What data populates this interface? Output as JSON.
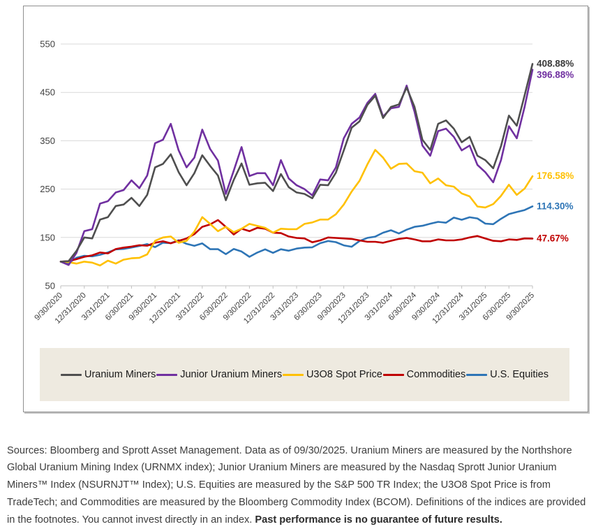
{
  "chart_data": {
    "type": "line",
    "title": "",
    "xlabel": "",
    "ylabel": "",
    "ylim": [
      50,
      550
    ],
    "y_ticks": [
      550,
      450,
      350,
      250,
      150,
      50
    ],
    "grid": "horizontal",
    "legend_position": "bottom",
    "x_tick_labels": [
      "9/30/2020",
      "12/31/2020",
      "3/31/2021",
      "6/30/2021",
      "9/30/2021",
      "12/31/2021",
      "3/31/2022",
      "6/30/2022",
      "9/30/2022",
      "12/31/2022",
      "3/31/2023",
      "6/30/2023",
      "9/30/2023",
      "12/31/2023",
      "3/31/2024",
      "6/30/2024",
      "9/30/2024",
      "12/31/2024",
      "3/31/2025",
      "6/30/2025",
      "9/30/2025"
    ],
    "points_per_tick": 3,
    "x_resolution": "monthly",
    "series": [
      {
        "name": "U.S. Equities",
        "color": "#2e75b6",
        "label_color": "#2e75b6",
        "end_label": "114.30%",
        "values": [
          100,
          97.3,
          108,
          112.1,
          111,
          114.1,
          119.1,
          125.4,
          126.3,
          129.2,
          132.3,
          136.3,
          130,
          139.1,
          138.1,
          144.3,
          136.8,
          132.7,
          137.7,
          125.7,
          125.9,
          115.5,
          126.2,
          121,
          109.9,
          118.8,
          125.4,
          118.2,
          125.6,
          122.5,
          127,
          129,
          129.6,
          138.1,
          142.6,
          140.3,
          133.6,
          130.8,
          142.7,
          149.2,
          151.7,
          159.8,
          164.9,
          158.2,
          166.1,
          172,
          174.1,
          178.4,
          182.2,
          180.5,
          191.1,
          186.6,
          191.8,
          189.3,
          178.6,
          177.4,
          188.6,
          198.2,
          202.6,
          206.7,
          214.3
        ]
      },
      {
        "name": "Commodities",
        "color": "#c00000",
        "label_color": "#c00000",
        "end_label": "47.67%",
        "values": [
          100,
          101,
          105,
          110,
          113,
          119,
          117,
          126,
          129,
          131,
          134,
          133,
          139,
          142,
          138,
          143,
          148,
          157,
          172,
          177,
          186,
          172,
          156,
          168,
          163,
          170,
          168,
          160,
          159,
          152,
          149,
          148,
          140,
          144,
          150,
          149,
          148,
          147,
          144,
          141,
          141,
          139,
          143,
          147,
          149,
          146,
          142,
          142,
          146,
          144,
          144,
          146,
          150,
          153,
          148,
          143,
          142,
          146,
          145,
          148,
          147.67
        ]
      },
      {
        "name": "U3O8 Spot Price",
        "color": "#ffc000",
        "label_color": "#ffc000",
        "end_label": "176.58%",
        "values": [
          100,
          99,
          96,
          100,
          98,
          92,
          102,
          96,
          104,
          107,
          108,
          115,
          143,
          150,
          152,
          139,
          143,
          162,
          192,
          178,
          163,
          172,
          161,
          168,
          178,
          174,
          170,
          160,
          168,
          167,
          167,
          178,
          181,
          187,
          187,
          198,
          218,
          245,
          267,
          301,
          331,
          315,
          292,
          302,
          303,
          287,
          284,
          262,
          272,
          258,
          255,
          241,
          235,
          214,
          212,
          219,
          236,
          259,
          238,
          251,
          276.58
        ]
      },
      {
        "name": "Junior Uranium Miners",
        "color": "#7030a0",
        "label_color": "#7030a0",
        "end_label": "396.88%",
        "values": [
          100,
          93,
          118,
          163,
          167,
          220,
          225,
          243,
          248,
          268,
          252,
          278,
          345,
          352,
          385,
          330,
          295,
          315,
          373,
          333,
          309,
          240,
          288,
          337,
          277,
          283,
          283,
          258,
          310,
          272,
          258,
          250,
          237,
          270,
          268,
          295,
          355,
          385,
          398,
          428,
          447,
          400,
          417,
          420,
          464,
          410,
          340,
          319,
          370,
          375,
          358,
          330,
          340,
          300,
          285,
          264,
          310,
          380,
          355,
          420,
          496.88
        ]
      },
      {
        "name": "Uranium Miners",
        "color": "#4f4f4f",
        "label_color": "#3a3a3a",
        "end_label": "408.88%",
        "values": [
          100,
          101,
          122,
          150,
          148,
          187,
          192,
          215,
          218,
          232,
          215,
          238,
          295,
          302,
          322,
          285,
          258,
          283,
          320,
          298,
          278,
          227,
          269,
          303,
          259,
          262,
          263,
          246,
          281,
          254,
          243,
          240,
          231,
          259,
          258,
          284,
          330,
          377,
          390,
          424,
          443,
          397,
          420,
          425,
          460,
          420,
          352,
          331,
          385,
          392,
          375,
          347,
          358,
          319,
          310,
          293,
          339,
          402,
          381,
          444,
          508.88
        ]
      }
    ]
  },
  "legend": {
    "items": [
      {
        "label": "Uranium Miners",
        "color": "#4f4f4f"
      },
      {
        "label": "Junior Uranium Miners",
        "color": "#7030a0"
      },
      {
        "label": "U3O8 Spot Price",
        "color": "#ffc000"
      },
      {
        "label": "Commodities",
        "color": "#c00000"
      },
      {
        "label": "U.S. Equities",
        "color": "#2e75b6"
      }
    ]
  },
  "footer": {
    "sources_text": "Sources: Bloomberg and Sprott Asset Management. Data as of 09/30/2025. Uranium Miners are measured by the Northshore Global Uranium Mining Index (URNMX index); Junior Uranium Miners are measured by the Nasdaq Sprott Junior Uranium Miners™ Index (NSURNJT™ Index); U.S. Equities are measured by the S&P 500 TR Index; the U3O8 Spot Price is from TradeTech; and Commodities are measured by the Bloomberg Commodity Index (BCOM). Definitions of the indices are provided in the footnotes. You cannot invest directly in an index. ",
    "bold_text": "Past performance is no guarantee of future results."
  }
}
